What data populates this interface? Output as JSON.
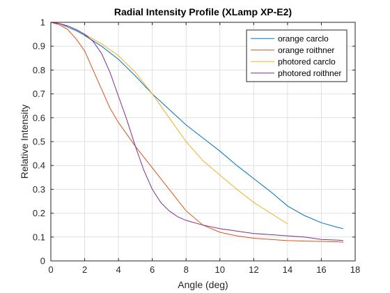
{
  "chart_data": {
    "type": "line",
    "title": "Radial Intensity Profile (XLamp XP-E2)",
    "xlabel": "Angle (deg)",
    "ylabel": "Relative Intensity",
    "xlim": [
      0,
      18
    ],
    "ylim": [
      0,
      1
    ],
    "xticks": [
      0,
      2,
      4,
      6,
      8,
      10,
      12,
      14,
      16,
      18
    ],
    "yticks": [
      0,
      0.1,
      0.2,
      0.3,
      0.4,
      0.5,
      0.6,
      0.7,
      0.8,
      0.9,
      1
    ],
    "grid": true,
    "legend_position": "top-right",
    "series": [
      {
        "name": "orange carclo",
        "color": "#0072BD",
        "x": [
          0,
          0.5,
          1,
          1.5,
          2,
          3,
          4,
          5,
          6,
          7,
          8,
          9,
          10,
          11,
          12,
          13,
          14,
          15,
          16,
          17,
          17.3
        ],
        "y": [
          1.0,
          0.995,
          0.98,
          0.965,
          0.945,
          0.9,
          0.845,
          0.775,
          0.7,
          0.635,
          0.57,
          0.515,
          0.46,
          0.4,
          0.345,
          0.29,
          0.23,
          0.19,
          0.16,
          0.14,
          0.135
        ]
      },
      {
        "name": "orange roithner",
        "color": "#D95319",
        "x": [
          0,
          0.5,
          1,
          1.5,
          2,
          2.5,
          3,
          3.5,
          4,
          4.5,
          5,
          6,
          7,
          8,
          9,
          10,
          11,
          12,
          13,
          14,
          15,
          16,
          17,
          17.3
        ],
        "y": [
          1.0,
          0.99,
          0.97,
          0.93,
          0.88,
          0.8,
          0.72,
          0.64,
          0.58,
          0.53,
          0.48,
          0.39,
          0.3,
          0.21,
          0.15,
          0.12,
          0.105,
          0.095,
          0.09,
          0.085,
          0.083,
          0.082,
          0.08,
          0.078
        ]
      },
      {
        "name": "photored carclo",
        "color": "#EDB120",
        "x": [
          0,
          0.5,
          1,
          1.5,
          2,
          3,
          4,
          5,
          6,
          7,
          8,
          9,
          10,
          11,
          12,
          13,
          14
        ],
        "y": [
          1.0,
          0.995,
          0.985,
          0.97,
          0.95,
          0.91,
          0.86,
          0.79,
          0.7,
          0.6,
          0.5,
          0.42,
          0.36,
          0.3,
          0.245,
          0.2,
          0.155
        ]
      },
      {
        "name": "photored roithner",
        "color": "#7E2F8E",
        "x": [
          0,
          0.5,
          1,
          1.5,
          2,
          2.5,
          3,
          3.5,
          4,
          4.5,
          5,
          5.5,
          6,
          6.5,
          7,
          7.5,
          8,
          9,
          10,
          11,
          12,
          13,
          14,
          15,
          16,
          17,
          17.3
        ],
        "y": [
          1.0,
          0.995,
          0.985,
          0.97,
          0.95,
          0.92,
          0.87,
          0.79,
          0.69,
          0.59,
          0.48,
          0.38,
          0.3,
          0.245,
          0.21,
          0.185,
          0.17,
          0.15,
          0.135,
          0.125,
          0.115,
          0.11,
          0.105,
          0.1,
          0.09,
          0.087,
          0.085
        ]
      }
    ]
  }
}
